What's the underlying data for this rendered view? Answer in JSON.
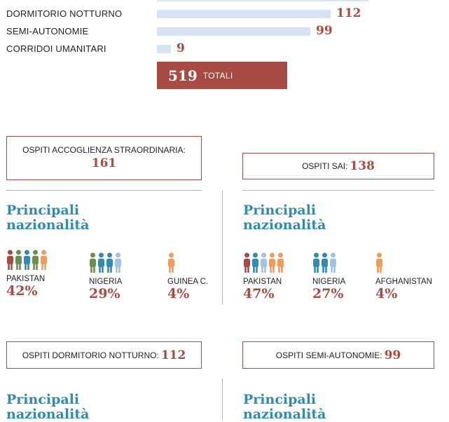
{
  "chart_data": {
    "type": "bar",
    "categories": [
      "DORMITORIO NOTTURNO",
      "SEMI-AUTONOMIE",
      "CORRIDOI UMANITARI"
    ],
    "values": [
      112,
      99,
      9
    ],
    "total_value": "519",
    "total_label": "TOTALI"
  },
  "box_cas": {
    "label": "OSPITI ACCOGLIENZA STRAORDINARIA:",
    "value": "161"
  },
  "box_sai": {
    "label": "OSPITI SAI:",
    "value": "138"
  },
  "box_dorm": {
    "label": "OSPITI DORMITORIO NOTTURNO:",
    "value": "112"
  },
  "box_semi": {
    "label": "OSPITI SEMI-AUTONOMIE:",
    "value": "99"
  },
  "section_heading_line1": "Principali",
  "section_heading_line2": "nazionalità",
  "nat_cas": [
    {
      "country": "PAKISTAN",
      "pct": "42%"
    },
    {
      "country": "NIGERIA",
      "pct": "29%"
    },
    {
      "country": "GUINEA C.",
      "pct": "4%"
    }
  ],
  "nat_sai": [
    {
      "country": "PAKISTAN",
      "pct": "47%"
    },
    {
      "country": "NIGERIA",
      "pct": "27%"
    },
    {
      "country": "AFGHANISTAN",
      "pct": "4%"
    }
  ],
  "colors": {
    "accent": "#a84b42",
    "bar": "#d6e3f4",
    "heading": "#2f8bb0",
    "divider": "#d9b06a",
    "people": [
      "#a84b42",
      "#6b8e4e",
      "#2f8bb0",
      "#9fc3e6",
      "#f29a5b"
    ]
  },
  "icons": {
    "person": "person-icon"
  }
}
